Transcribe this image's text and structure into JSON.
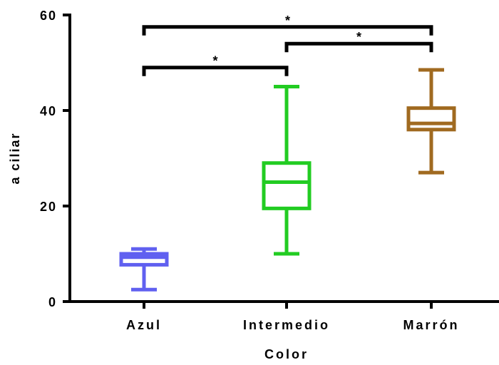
{
  "chart_data": {
    "type": "box",
    "title": "",
    "xlabel": "Color",
    "ylabel": "a ciliar",
    "ylim": [
      0,
      60
    ],
    "yticks": [
      0,
      20,
      40,
      60
    ],
    "ytick_labels": [
      "0",
      "20",
      "40",
      "60"
    ],
    "categories": [
      "Azul",
      "Intermedio",
      "Marrón"
    ],
    "boxes": [
      {
        "category": "Azul",
        "min": 2.5,
        "q1": 7.7,
        "median": 9.3,
        "q3": 10.0,
        "max": 11.0,
        "color": "#6060f0"
      },
      {
        "category": "Intermedio",
        "min": 10.0,
        "q1": 19.5,
        "median": 25.0,
        "q3": 29.0,
        "max": 45.0,
        "color": "#22cc22"
      },
      {
        "category": "Marrón",
        "min": 27.0,
        "q1": 36.0,
        "median": 37.3,
        "q3": 40.5,
        "max": 48.5,
        "color": "#a06a20"
      }
    ],
    "significance": [
      {
        "from": "Azul",
        "to": "Intermedio",
        "label": "*",
        "y": 49
      },
      {
        "from": "Intermedio",
        "to": "Marrón",
        "label": "*",
        "y": 54
      },
      {
        "from": "Azul",
        "to": "Marrón",
        "label": "*",
        "y": 57.5
      }
    ]
  }
}
